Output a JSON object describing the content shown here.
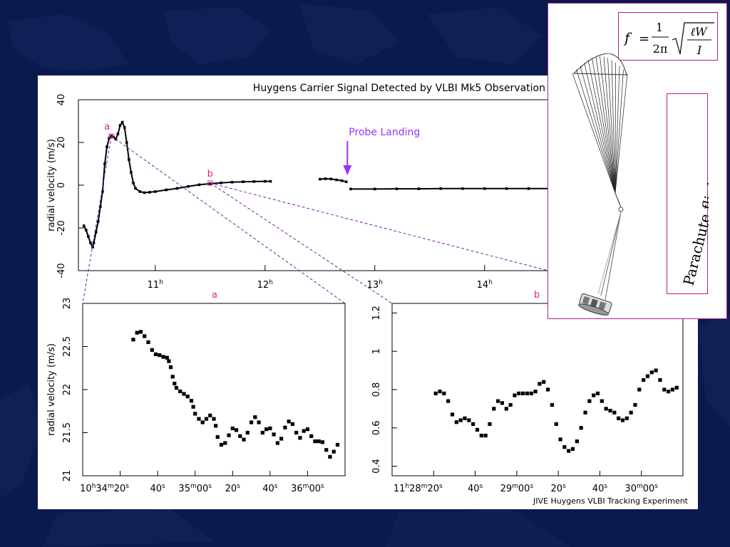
{
  "slide": {
    "colors": {
      "background": "#0b1a4c",
      "accent_magenta": "#d6248a",
      "probe_purple": "#9b30ff",
      "box_border": "#b0208a"
    }
  },
  "chart_data": [
    {
      "type": "scatter",
      "title": "Huygens Carrier Signal Detected by VLBI Mk5 Observation",
      "ylabel": "radial velocity (m/s)",
      "xlabel": "",
      "ylim": [
        -40,
        40
      ],
      "y_ticks": [
        "40",
        "20",
        "0",
        "-20",
        "-40"
      ],
      "x_ticks": [
        "11h",
        "12h",
        "13h",
        "14h"
      ],
      "annotations": {
        "probe_landing": "Probe Landing",
        "point_a": "a",
        "point_b": "b"
      },
      "series": [
        {
          "points": [
            [
              10.35,
              -19
            ],
            [
              10.37,
              -21
            ],
            [
              10.39,
              -24
            ],
            [
              10.41,
              -27
            ],
            [
              10.43,
              -29
            ],
            [
              10.44,
              -27
            ],
            [
              10.46,
              -22
            ],
            [
              10.48,
              -17
            ],
            [
              10.5,
              -10
            ],
            [
              10.52,
              -3
            ],
            [
              10.54,
              10
            ],
            [
              10.56,
              18
            ],
            [
              10.58,
              22
            ],
            [
              10.6,
              23
            ],
            [
              10.62,
              22.5
            ],
            [
              10.64,
              21.5
            ],
            [
              10.66,
              24
            ],
            [
              10.68,
              28
            ],
            [
              10.7,
              29.5
            ],
            [
              10.72,
              27
            ],
            [
              10.74,
              20
            ],
            [
              10.76,
              12
            ],
            [
              10.78,
              6
            ],
            [
              10.8,
              1
            ],
            [
              10.82,
              -1.5
            ],
            [
              10.86,
              -3
            ],
            [
              10.9,
              -3.5
            ],
            [
              10.95,
              -3.3
            ],
            [
              11.0,
              -3
            ],
            [
              11.1,
              -2.2
            ],
            [
              11.2,
              -1.5
            ],
            [
              11.3,
              -0.6
            ],
            [
              11.4,
              0.2
            ],
            [
              11.5,
              0.7
            ],
            [
              11.6,
              1.1
            ],
            [
              11.7,
              1.4
            ],
            [
              11.8,
              1.6
            ],
            [
              11.9,
              1.7
            ],
            [
              12.0,
              1.8
            ],
            [
              12.05,
              1.8
            ]
          ]
        },
        {
          "points": [
            [
              12.5,
              2.8
            ],
            [
              12.55,
              3
            ],
            [
              12.6,
              2.9
            ],
            [
              12.65,
              2.5
            ],
            [
              12.7,
              2.1
            ],
            [
              12.74,
              1.6
            ]
          ]
        },
        {
          "points": [
            [
              12.78,
              -1.8
            ],
            [
              13.0,
              -1.8
            ],
            [
              13.2,
              -1.7
            ],
            [
              13.4,
              -1.7
            ],
            [
              13.6,
              -1.6
            ],
            [
              13.8,
              -1.6
            ],
            [
              14.0,
              -1.6
            ],
            [
              14.2,
              -1.6
            ],
            [
              14.4,
              -1.6
            ],
            [
              14.6,
              -1.6
            ],
            [
              14.8,
              -1.6
            ],
            [
              15.0,
              -1.6
            ]
          ]
        }
      ]
    },
    {
      "type": "scatter",
      "title": "",
      "ylabel": "radial velocity (m/s)",
      "xlabel": "",
      "ylim": [
        21,
        23
      ],
      "y_ticks": [
        "23",
        "22.5",
        "22",
        "21.5",
        "21"
      ],
      "x_ticks": [
        "10h34m20s",
        "40s",
        "35m00s",
        "20s",
        "40s",
        "36m00s"
      ],
      "panel_label": "a",
      "points": [
        [
          27,
          22.58
        ],
        [
          29,
          22.66
        ],
        [
          31,
          22.67
        ],
        [
          33,
          22.62
        ],
        [
          35,
          22.55
        ],
        [
          37,
          22.46
        ],
        [
          39,
          22.41
        ],
        [
          41,
          22.4
        ],
        [
          43,
          22.38
        ],
        [
          45,
          22.37
        ],
        [
          46,
          22.33
        ],
        [
          47,
          22.26
        ],
        [
          48,
          22.15
        ],
        [
          49,
          22.07
        ],
        [
          50,
          22.02
        ],
        [
          52,
          21.98
        ],
        [
          54,
          21.95
        ],
        [
          56,
          21.92
        ],
        [
          58,
          21.87
        ],
        [
          59,
          21.8
        ],
        [
          60,
          21.72
        ],
        [
          62,
          21.66
        ],
        [
          64,
          21.62
        ],
        [
          66,
          21.66
        ],
        [
          68,
          21.7
        ],
        [
          70,
          21.66
        ],
        [
          71,
          21.58
        ],
        [
          72,
          21.45
        ],
        [
          74,
          21.36
        ],
        [
          76,
          21.38
        ],
        [
          78,
          21.47
        ],
        [
          80,
          21.55
        ],
        [
          82,
          21.53
        ],
        [
          84,
          21.46
        ],
        [
          86,
          21.42
        ],
        [
          88,
          21.5
        ],
        [
          90,
          21.62
        ],
        [
          92,
          21.68
        ],
        [
          94,
          21.62
        ],
        [
          96,
          21.5
        ],
        [
          98,
          21.54
        ],
        [
          100,
          21.55
        ],
        [
          102,
          21.48
        ],
        [
          104,
          21.38
        ],
        [
          106,
          21.43
        ],
        [
          108,
          21.56
        ],
        [
          110,
          21.63
        ],
        [
          112,
          21.6
        ],
        [
          114,
          21.5
        ],
        [
          116,
          21.44
        ],
        [
          118,
          21.52
        ],
        [
          120,
          21.54
        ],
        [
          122,
          21.46
        ],
        [
          124,
          21.4
        ],
        [
          126,
          21.4
        ],
        [
          128,
          21.39
        ],
        [
          130,
          21.3
        ],
        [
          132,
          21.22
        ],
        [
          134,
          21.28
        ],
        [
          136,
          21.36
        ]
      ]
    },
    {
      "type": "scatter",
      "title": "",
      "ylabel": "",
      "xlabel": "",
      "ylim": [
        0.35,
        1.25
      ],
      "y_ticks": [
        "1.2",
        "1",
        "0.8",
        "0.6",
        "0.4"
      ],
      "x_ticks": [
        "11h28m20s",
        "40s",
        "29m00s",
        "20s",
        "40s",
        "30m00s"
      ],
      "panel_label": "b",
      "points": [
        [
          21,
          0.78
        ],
        [
          23,
          0.79
        ],
        [
          25,
          0.78
        ],
        [
          27,
          0.74
        ],
        [
          29,
          0.67
        ],
        [
          31,
          0.63
        ],
        [
          33,
          0.64
        ],
        [
          35,
          0.65
        ],
        [
          37,
          0.64
        ],
        [
          39,
          0.62
        ],
        [
          41,
          0.59
        ],
        [
          43,
          0.56
        ],
        [
          45,
          0.56
        ],
        [
          47,
          0.62
        ],
        [
          49,
          0.7
        ],
        [
          51,
          0.74
        ],
        [
          53,
          0.73
        ],
        [
          55,
          0.7
        ],
        [
          57,
          0.72
        ],
        [
          59,
          0.77
        ],
        [
          61,
          0.78
        ],
        [
          63,
          0.78
        ],
        [
          65,
          0.78
        ],
        [
          67,
          0.78
        ],
        [
          69,
          0.79
        ],
        [
          71,
          0.83
        ],
        [
          73,
          0.84
        ],
        [
          75,
          0.8
        ],
        [
          77,
          0.72
        ],
        [
          79,
          0.62
        ],
        [
          81,
          0.54
        ],
        [
          83,
          0.5
        ],
        [
          85,
          0.48
        ],
        [
          87,
          0.49
        ],
        [
          89,
          0.53
        ],
        [
          91,
          0.6
        ],
        [
          93,
          0.68
        ],
        [
          95,
          0.74
        ],
        [
          97,
          0.77
        ],
        [
          99,
          0.78
        ],
        [
          101,
          0.74
        ],
        [
          103,
          0.7
        ],
        [
          105,
          0.69
        ],
        [
          107,
          0.68
        ],
        [
          109,
          0.65
        ],
        [
          111,
          0.64
        ],
        [
          113,
          0.65
        ],
        [
          115,
          0.68
        ],
        [
          117,
          0.72
        ],
        [
          119,
          0.8
        ],
        [
          121,
          0.85
        ],
        [
          123,
          0.87
        ],
        [
          125,
          0.89
        ],
        [
          127,
          0.9
        ],
        [
          129,
          0.85
        ],
        [
          131,
          0.8
        ],
        [
          133,
          0.79
        ],
        [
          135,
          0.8
        ],
        [
          137,
          0.81
        ]
      ]
    }
  ],
  "figure": {
    "credit": "JIVE Huygens VLBI Tracking Experiment"
  },
  "parachute": {
    "caption": "Parachute flight dynamics",
    "formula": {
      "f": "f",
      "eq": "=",
      "num": "1",
      "den": "2π",
      "rad_num": "ℓW",
      "rad_den": "I"
    }
  }
}
